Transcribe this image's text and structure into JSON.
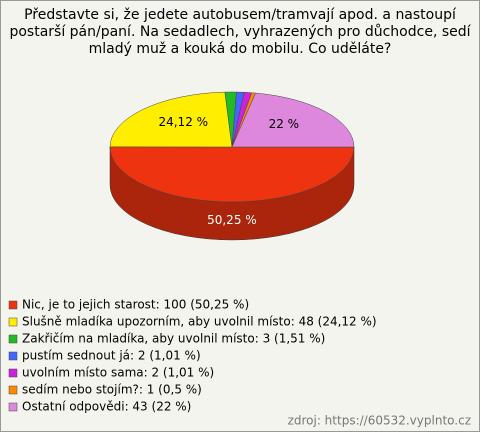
{
  "chart_data": {
    "type": "pie",
    "title": "Představte si, že jedete autobusem/tramvají apod. a nastoupí postarší pán/paní. Na sedadlech, vyhrazených pro důchodce, sedí mladý muž a kouká do mobilu. Co uděláte?",
    "categories": [
      "Nic, je to jejich starost: 100 (50,25 %)",
      "Slušně mladíka upozorním, aby uvolnil místo: 48 (24,12 %)",
      "Zakřičím na mladíka, aby uvolnil místo: 3 (1,51 %)",
      "pustím sednout já: 2 (1,01 %)",
      "uvolním místo sama: 2 (1,01 %)",
      "sedím nebo stojím?: 1 (0,5 %)",
      "Ostatní odpovědi: 43 (22 %)"
    ],
    "values": [
      50.25,
      24.12,
      1.51,
      1.01,
      1.01,
      0.5,
      22
    ],
    "value_labels": [
      "50,25 %",
      "24,12 %",
      null,
      null,
      null,
      null,
      "22 %"
    ],
    "colors": [
      "#ee3311",
      "#ffee00",
      "#22bb22",
      "#4466ff",
      "#cc22dd",
      "#ff8800",
      "#dd88dd"
    ],
    "source": "zdroj: https://60532.vyplnto.cz"
  }
}
